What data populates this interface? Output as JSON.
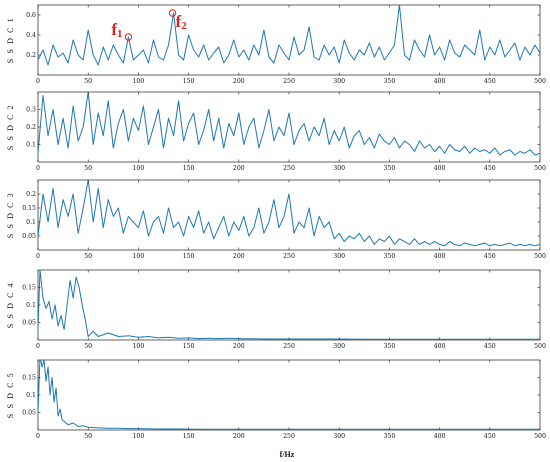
{
  "chart_data": {
    "type": "line",
    "line_color": "#1f77b4",
    "annotation_color": "#e0221e",
    "xlabel": "f/Hz",
    "xlim": [
      0,
      500
    ],
    "xticks": [
      0,
      50,
      100,
      150,
      200,
      250,
      300,
      350,
      400,
      450,
      500
    ],
    "grid": false,
    "legend": "none",
    "panels": [
      {
        "ylabel": "S S D C  1",
        "ylim": [
          0,
          0.7
        ],
        "yticks": [
          0.2,
          0.4,
          0.6
        ],
        "yticklabels": [
          "0.2",
          "0.4",
          "0.6"
        ],
        "annotations": [
          {
            "label": "f",
            "sub": "1",
            "x": 90,
            "y": 0.38
          },
          {
            "label": "f",
            "sub": "2",
            "x": 134,
            "y": 0.62
          }
        ],
        "series": [
          {
            "x": [
              0,
              5,
              10,
              15,
              20,
              25,
              30,
              35,
              40,
              45,
              50,
              55,
              60,
              65,
              70,
              75,
              80,
              85,
              90,
              95,
              100,
              105,
              110,
              115,
              120,
              125,
              130,
              135,
              140,
              145,
              150,
              155,
              160,
              165,
              170,
              175,
              180,
              185,
              190,
              195,
              200,
              205,
              210,
              215,
              220,
              225,
              230,
              235,
              240,
              245,
              250,
              255,
              260,
              265,
              270,
              275,
              280,
              285,
              290,
              295,
              300,
              305,
              310,
              315,
              320,
              325,
              330,
              335,
              340,
              345,
              350,
              355,
              360,
              365,
              370,
              375,
              380,
              385,
              390,
              395,
              400,
              405,
              410,
              415,
              420,
              425,
              430,
              435,
              440,
              445,
              450,
              455,
              460,
              465,
              470,
              475,
              480,
              485,
              490,
              495,
              500
            ],
            "y": [
              0.15,
              0.25,
              0.1,
              0.3,
              0.18,
              0.22,
              0.12,
              0.35,
              0.2,
              0.15,
              0.45,
              0.2,
              0.1,
              0.28,
              0.15,
              0.3,
              0.2,
              0.12,
              0.38,
              0.15,
              0.2,
              0.25,
              0.12,
              0.35,
              0.18,
              0.15,
              0.3,
              0.62,
              0.2,
              0.15,
              0.4,
              0.25,
              0.18,
              0.3,
              0.15,
              0.22,
              0.28,
              0.12,
              0.2,
              0.35,
              0.18,
              0.25,
              0.15,
              0.3,
              0.2,
              0.45,
              0.18,
              0.12,
              0.3,
              0.22,
              0.15,
              0.38,
              0.2,
              0.25,
              0.48,
              0.18,
              0.15,
              0.3,
              0.2,
              0.28,
              0.12,
              0.35,
              0.22,
              0.15,
              0.25,
              0.2,
              0.32,
              0.18,
              0.28,
              0.15,
              0.22,
              0.3,
              0.7,
              0.2,
              0.15,
              0.35,
              0.25,
              0.18,
              0.4,
              0.2,
              0.28,
              0.15,
              0.35,
              0.22,
              0.18,
              0.3,
              0.25,
              0.2,
              0.45,
              0.15,
              0.28,
              0.2,
              0.35,
              0.18,
              0.25,
              0.32,
              0.15,
              0.28,
              0.2,
              0.3,
              0.22
            ]
          }
        ]
      },
      {
        "ylabel": "S S D C  2",
        "ylim": [
          0,
          0.4
        ],
        "yticks": [
          0.1,
          0.2,
          0.3
        ],
        "yticklabels": [
          "0.1",
          "0.2",
          "0.3"
        ],
        "annotations": [],
        "series": [
          {
            "x": [
              0,
              5,
              10,
              15,
              20,
              25,
              30,
              35,
              40,
              45,
              50,
              55,
              60,
              65,
              70,
              75,
              80,
              85,
              90,
              95,
              100,
              105,
              110,
              115,
              120,
              125,
              130,
              135,
              140,
              145,
              150,
              155,
              160,
              165,
              170,
              175,
              180,
              185,
              190,
              195,
              200,
              205,
              210,
              215,
              220,
              225,
              230,
              235,
              240,
              245,
              250,
              255,
              260,
              265,
              270,
              275,
              280,
              285,
              290,
              295,
              300,
              305,
              310,
              315,
              320,
              325,
              330,
              335,
              340,
              345,
              350,
              355,
              360,
              365,
              370,
              375,
              380,
              385,
              390,
              395,
              400,
              405,
              410,
              415,
              420,
              425,
              430,
              435,
              440,
              445,
              450,
              455,
              460,
              465,
              470,
              475,
              480,
              485,
              490,
              495,
              500
            ],
            "y": [
              0.05,
              0.38,
              0.15,
              0.3,
              0.1,
              0.25,
              0.08,
              0.32,
              0.12,
              0.2,
              0.4,
              0.1,
              0.28,
              0.15,
              0.35,
              0.08,
              0.22,
              0.3,
              0.12,
              0.25,
              0.18,
              0.32,
              0.1,
              0.2,
              0.3,
              0.08,
              0.25,
              0.15,
              0.35,
              0.12,
              0.22,
              0.28,
              0.1,
              0.18,
              0.3,
              0.12,
              0.25,
              0.08,
              0.22,
              0.15,
              0.28,
              0.1,
              0.2,
              0.25,
              0.08,
              0.18,
              0.3,
              0.12,
              0.2,
              0.15,
              0.28,
              0.1,
              0.18,
              0.22,
              0.12,
              0.2,
              0.15,
              0.25,
              0.1,
              0.18,
              0.12,
              0.2,
              0.08,
              0.15,
              0.18,
              0.1,
              0.14,
              0.08,
              0.16,
              0.12,
              0.1,
              0.14,
              0.08,
              0.12,
              0.1,
              0.06,
              0.12,
              0.08,
              0.1,
              0.06,
              0.09,
              0.05,
              0.1,
              0.07,
              0.06,
              0.09,
              0.05,
              0.08,
              0.06,
              0.07,
              0.05,
              0.08,
              0.04,
              0.06,
              0.07,
              0.04,
              0.06,
              0.05,
              0.07,
              0.04,
              0.05
            ]
          }
        ]
      },
      {
        "ylabel": "S S D C  3",
        "ylim": [
          0,
          0.25
        ],
        "yticks": [
          0.05,
          0.1,
          0.15,
          0.2
        ],
        "yticklabels": [
          "0.05",
          "0.1",
          "0.15",
          "0.2"
        ],
        "annotations": [],
        "series": [
          {
            "x": [
              0,
              5,
              10,
              15,
              20,
              25,
              30,
              35,
              40,
              45,
              50,
              55,
              60,
              65,
              70,
              75,
              80,
              85,
              90,
              95,
              100,
              105,
              110,
              115,
              120,
              125,
              130,
              135,
              140,
              145,
              150,
              155,
              160,
              165,
              170,
              175,
              180,
              185,
              190,
              195,
              200,
              205,
              210,
              215,
              220,
              225,
              230,
              235,
              240,
              245,
              250,
              255,
              260,
              265,
              270,
              275,
              280,
              285,
              290,
              295,
              300,
              305,
              310,
              315,
              320,
              325,
              330,
              335,
              340,
              345,
              350,
              355,
              360,
              365,
              370,
              375,
              380,
              385,
              390,
              395,
              400,
              405,
              410,
              415,
              420,
              425,
              430,
              435,
              440,
              445,
              450,
              455,
              460,
              465,
              470,
              475,
              480,
              485,
              490,
              495,
              500
            ],
            "y": [
              0.05,
              0.2,
              0.1,
              0.22,
              0.08,
              0.18,
              0.12,
              0.2,
              0.06,
              0.15,
              0.25,
              0.1,
              0.22,
              0.08,
              0.18,
              0.12,
              0.15,
              0.06,
              0.12,
              0.1,
              0.08,
              0.14,
              0.05,
              0.1,
              0.12,
              0.06,
              0.15,
              0.08,
              0.1,
              0.05,
              0.12,
              0.08,
              0.14,
              0.06,
              0.1,
              0.04,
              0.08,
              0.12,
              0.05,
              0.1,
              0.07,
              0.12,
              0.05,
              0.08,
              0.15,
              0.06,
              0.1,
              0.18,
              0.08,
              0.12,
              0.2,
              0.06,
              0.1,
              0.08,
              0.15,
              0.05,
              0.12,
              0.08,
              0.1,
              0.04,
              0.06,
              0.03,
              0.05,
              0.04,
              0.06,
              0.03,
              0.05,
              0.02,
              0.04,
              0.03,
              0.05,
              0.02,
              0.04,
              0.03,
              0.02,
              0.04,
              0.02,
              0.03,
              0.02,
              0.03,
              0.02,
              0.015,
              0.03,
              0.02,
              0.015,
              0.025,
              0.02,
              0.015,
              0.02,
              0.025,
              0.015,
              0.02,
              0.015,
              0.02,
              0.025,
              0.015,
              0.02,
              0.015,
              0.02,
              0.015,
              0.02
            ]
          }
        ]
      },
      {
        "ylabel": "S S D C  4",
        "ylim": [
          0,
          0.2
        ],
        "yticks": [
          0.05,
          0.1,
          0.15
        ],
        "yticklabels": [
          "0.05",
          "0.1",
          "0.15"
        ],
        "annotations": [],
        "series": [
          {
            "x": [
              0,
              2,
              5,
              8,
              11,
              14,
              17,
              20,
              23,
              26,
              29,
              32,
              35,
              38,
              41,
              44,
              47,
              50,
              55,
              60,
              65,
              70,
              80,
              90,
              100,
              110,
              120,
              130,
              140,
              150,
              160,
              170,
              180,
              190,
              200,
              225,
              250,
              275,
              300,
              325,
              350,
              375,
              400,
              425,
              450,
              475,
              500
            ],
            "y": [
              0.03,
              0.2,
              0.12,
              0.09,
              0.11,
              0.06,
              0.1,
              0.04,
              0.07,
              0.03,
              0.1,
              0.17,
              0.12,
              0.18,
              0.15,
              0.1,
              0.06,
              0.01,
              0.025,
              0.01,
              0.015,
              0.02,
              0.01,
              0.012,
              0.008,
              0.01,
              0.006,
              0.008,
              0.005,
              0.006,
              0.004,
              0.005,
              0.004,
              0.005,
              0.004,
              0.003,
              0.003,
              0.003,
              0.003,
              0.002,
              0.002,
              0.002,
              0.002,
              0.002,
              0.002,
              0.002,
              0.002
            ]
          }
        ]
      },
      {
        "ylabel": "S S D C  5",
        "ylim": [
          0,
          0.2
        ],
        "yticks": [
          0.05,
          0.1,
          0.15
        ],
        "yticklabels": [
          "0.05",
          "0.1",
          "0.15"
        ],
        "annotations": [],
        "series": [
          {
            "x": [
              0,
              2,
              4,
              6,
              8,
              10,
              12,
              14,
              16,
              18,
              20,
              22,
              24,
              26,
              28,
              30,
              35,
              40,
              45,
              50,
              60,
              70,
              80,
              90,
              100,
              120,
              140,
              160,
              180,
              200,
              250,
              300,
              350,
              400,
              450,
              500
            ],
            "y": [
              0.05,
              0.21,
              0.18,
              0.2,
              0.14,
              0.18,
              0.1,
              0.15,
              0.08,
              0.12,
              0.04,
              0.06,
              0.03,
              0.025,
              0.02,
              0.015,
              0.02,
              0.01,
              0.012,
              0.008,
              0.006,
              0.005,
              0.005,
              0.004,
              0.004,
              0.003,
              0.003,
              0.002,
              0.002,
              0.002,
              0.002,
              0.002,
              0.002,
              0.002,
              0.002,
              0.002
            ]
          }
        ]
      }
    ]
  }
}
